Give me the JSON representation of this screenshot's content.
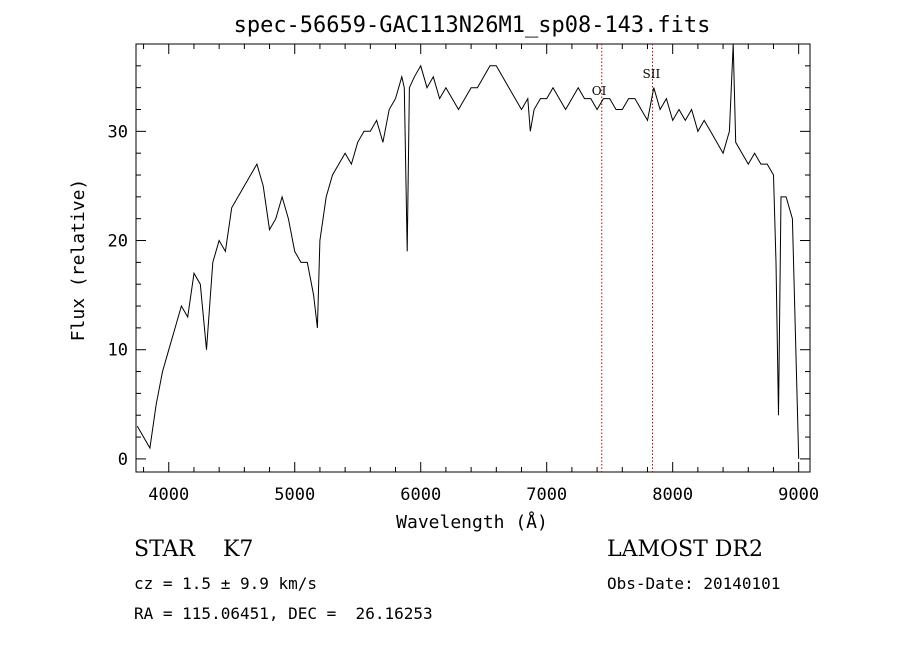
{
  "chart_data": {
    "type": "line",
    "title": "spec-56659-GAC113N26M1_sp08-143.fits",
    "xlabel": "Wavelength (Å)",
    "ylabel": "Flux (relative)",
    "xlim": [
      3740,
      9090
    ],
    "ylim": [
      -1.2,
      38
    ],
    "xticks": [
      4000,
      5000,
      6000,
      7000,
      8000,
      9000
    ],
    "yticks": [
      0,
      10,
      20,
      30
    ],
    "grid": false,
    "series": [
      {
        "x": [
          3750,
          3800,
          3850,
          3900,
          3950,
          4000,
          4050,
          4100,
          4150,
          4200,
          4250,
          4300,
          4350,
          4400,
          4450,
          4500,
          4550,
          4600,
          4650,
          4700,
          4750,
          4800,
          4850,
          4900,
          4950,
          5000,
          5050,
          5100,
          5150,
          5180,
          5200,
          5250,
          5300,
          5350,
          5400,
          5450,
          5500,
          5550,
          5600,
          5650,
          5700,
          5750,
          5800,
          5850,
          5870,
          5893,
          5910,
          5950,
          6000,
          6050,
          6100,
          6150,
          6200,
          6250,
          6300,
          6350,
          6400,
          6450,
          6500,
          6550,
          6600,
          6650,
          6700,
          6750,
          6800,
          6850,
          6870,
          6900,
          6950,
          7000,
          7050,
          7100,
          7150,
          7200,
          7250,
          7300,
          7350,
          7400,
          7450,
          7500,
          7550,
          7600,
          7650,
          7700,
          7750,
          7800,
          7850,
          7900,
          7950,
          8000,
          8050,
          8100,
          8150,
          8200,
          8250,
          8300,
          8350,
          8400,
          8450,
          8480,
          8500,
          8550,
          8600,
          8650,
          8700,
          8750,
          8800,
          8820,
          8840,
          8860,
          8900,
          8950,
          9000
        ],
        "y": [
          3,
          2,
          1,
          5,
          8,
          10,
          12,
          14,
          13,
          17,
          16,
          10,
          18,
          20,
          19,
          23,
          24,
          25,
          26,
          27,
          25,
          21,
          22,
          24,
          22,
          19,
          18,
          18,
          15,
          12,
          20,
          24,
          26,
          27,
          28,
          27,
          29,
          30,
          30,
          31,
          29,
          32,
          33,
          35,
          34,
          19,
          34,
          35,
          36,
          34,
          35,
          33,
          34,
          33,
          32,
          33,
          34,
          34,
          35,
          36,
          36,
          35,
          34,
          33,
          32,
          33,
          30,
          32,
          33,
          33,
          34,
          33,
          32,
          33,
          34,
          33,
          33,
          32,
          33,
          33,
          32,
          32,
          33,
          33,
          32,
          31,
          34,
          32,
          33,
          31,
          32,
          31,
          32,
          30,
          31,
          30,
          29,
          28,
          30,
          38,
          29,
          28,
          27,
          28,
          27,
          27,
          26,
          18,
          4,
          24,
          24,
          22,
          0
        ]
      }
    ],
    "vlines": [
      {
        "x": 7437,
        "color": "#c00000",
        "label": "OI"
      },
      {
        "x": 7840,
        "color": "#c00000",
        "label": "SII"
      }
    ]
  },
  "info": {
    "class_line": "STAR    K7",
    "survey": "LAMOST DR2",
    "cz_line": "cz = 1.5 ± 9.9 km/s",
    "obs_date": "Obs-Date: 20140101",
    "radec_line": "RA = 115.06451, DEC =  26.16253"
  }
}
